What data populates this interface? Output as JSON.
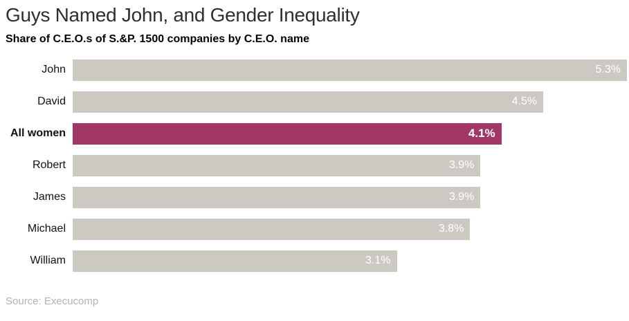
{
  "chart_data": {
    "type": "bar",
    "orientation": "horizontal",
    "title": "Guys Named John, and Gender Inequality",
    "subtitle": "Share of C.E.O.s of S.&P. 1500 companies by C.E.O. name",
    "source": "Source: Execucomp",
    "categories": [
      "John",
      "David",
      "All women",
      "Robert",
      "James",
      "Michael",
      "William"
    ],
    "values": [
      5.3,
      4.5,
      4.1,
      3.9,
      3.9,
      3.8,
      3.1
    ],
    "value_labels": [
      "5.3%",
      "4.5%",
      "4.1%",
      "3.9%",
      "3.9%",
      "3.8%",
      "3.1%"
    ],
    "highlighted_category": "All women",
    "xlim": [
      0,
      5.3
    ],
    "grid": false,
    "legend": "none",
    "colors": {
      "bar_default": "#ccc9c3",
      "bar_highlight": "#a23766",
      "value_label": "#ffffff",
      "title": "#2f2f2f",
      "subtitle": "#000000",
      "source": "#b5b2ae"
    }
  }
}
